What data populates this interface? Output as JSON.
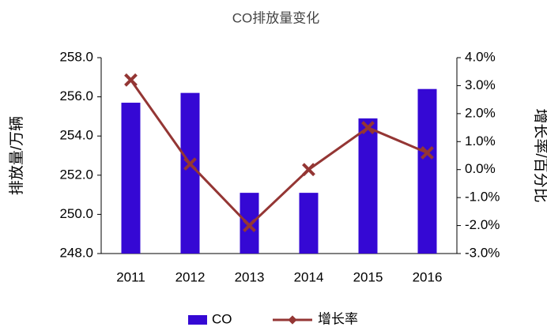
{
  "chart_data": {
    "type": "bar_line",
    "title": "CO排放量变化",
    "y_label": "排放量/万辆",
    "y2_label": "增长率/百分比",
    "categories": [
      "2011",
      "2012",
      "2013",
      "2014",
      "2015",
      "2016"
    ],
    "series": [
      {
        "name": "CO",
        "type": "bar",
        "color": "#3508d4",
        "values": [
          255.7,
          256.2,
          251.1,
          251.1,
          254.9,
          256.4
        ]
      },
      {
        "name": "增长率",
        "type": "line",
        "axis": "y2",
        "color": "#943634",
        "values": [
          3.2,
          0.2,
          -2.0,
          0.0,
          1.5,
          0.6
        ]
      }
    ],
    "ylim": [
      248,
      258
    ],
    "yticks": [
      {
        "value": 248,
        "label": "248.0"
      },
      {
        "value": 250,
        "label": "250.0"
      },
      {
        "value": 252,
        "label": "252.0"
      },
      {
        "value": 254,
        "label": "254.0"
      },
      {
        "value": 256,
        "label": "256.0"
      },
      {
        "value": 258,
        "label": "258.0"
      }
    ],
    "y2lim": [
      -3,
      4
    ],
    "y2ticks": [
      {
        "value": -3,
        "label": "-3.0%"
      },
      {
        "value": -2,
        "label": "-2.0%"
      },
      {
        "value": -1,
        "label": "-1.0%"
      },
      {
        "value": 0,
        "label": "0.0%"
      },
      {
        "value": 1,
        "label": "1.0%"
      },
      {
        "value": 2,
        "label": "2.0%"
      },
      {
        "value": 3,
        "label": "3.0%"
      },
      {
        "value": 4,
        "label": "4.0%"
      }
    ],
    "grid": false,
    "legend": "bottom"
  }
}
